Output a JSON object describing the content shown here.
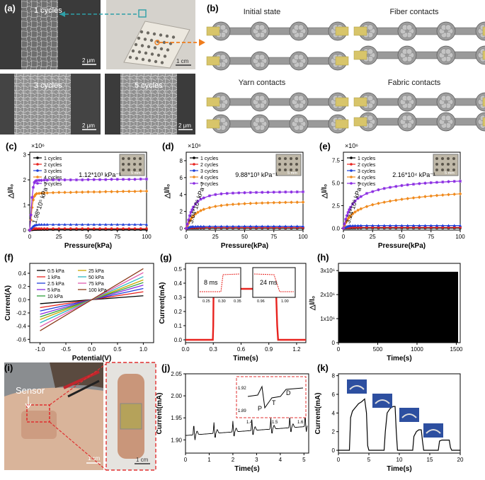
{
  "colors": {
    "black": "#000000",
    "red": "#e8231f",
    "blue": "#1f3fd8",
    "orange": "#f08a1d",
    "purple": "#8a2be2",
    "gray": "#8c8c8c",
    "yarn": "#d8c56a",
    "skin": "#d9b49a",
    "bandage": "#c9967a"
  },
  "panel_labels": {
    "a": "(a)",
    "b": "(b)",
    "c": "(c)",
    "d": "(d)",
    "e": "(e)",
    "f": "(f)",
    "g": "(g)",
    "h": "(h)",
    "i": "(i)",
    "j": "(j)",
    "k": "(k)"
  },
  "panel_a": {
    "sem1": {
      "label": "1 cycles",
      "scale": "2 μm"
    },
    "photo_scale": "1 cm",
    "sem3": {
      "label": "3 cycles",
      "scale": "2 μm"
    },
    "sem5": {
      "label": "5 cycles",
      "scale": "2 μm"
    }
  },
  "panel_b": {
    "states": [
      "Initial state",
      "Fiber contacts",
      "Yarn contacts",
      "Fabric contacts"
    ]
  },
  "legend_cycles": [
    "1 cycles",
    "2 cycles",
    "3 cycles",
    "4 cycles",
    "5 cycles"
  ],
  "multiplier": "×10⁶",
  "ylabel_ratio": "△I/I₀",
  "inset_scale": "5 mm",
  "chart_data": [
    {
      "id": "c",
      "type": "line",
      "xlabel": "Pressure(kPa)",
      "ylabel": "△I/I₀",
      "multiplier": "×10⁶",
      "xlim": [
        0,
        100
      ],
      "ylim": [
        0,
        3.1
      ],
      "xticks": [
        0,
        25,
        50,
        75,
        100
      ],
      "yticks": [
        0,
        1,
        2,
        3
      ],
      "annotations": [
        "1.12*10³ kPa⁻¹",
        "1.98*10⁵ kPa⁻¹"
      ],
      "x": [
        0,
        1,
        2,
        3,
        4,
        5,
        6,
        8,
        10,
        12.5,
        15,
        20,
        25,
        30,
        35,
        40,
        45,
        50,
        55,
        60,
        65,
        70,
        75,
        80,
        85,
        90,
        95,
        100
      ],
      "series": [
        {
          "name": "1 cycles",
          "color": "#000000",
          "values": [
            0,
            0.005,
            0.01,
            0.015,
            0.02,
            0.02,
            0.02,
            0.02,
            0.02,
            0.02,
            0.02,
            0.02,
            0.02,
            0.02,
            0.02,
            0.02,
            0.02,
            0.02,
            0.02,
            0.02,
            0.02,
            0.02,
            0.02,
            0.02,
            0.02,
            0.02,
            0.02,
            0.02
          ]
        },
        {
          "name": "2 cycles",
          "color": "#e8231f",
          "values": [
            0,
            0.02,
            0.04,
            0.05,
            0.06,
            0.06,
            0.06,
            0.06,
            0.06,
            0.06,
            0.06,
            0.06,
            0.06,
            0.06,
            0.06,
            0.06,
            0.06,
            0.06,
            0.06,
            0.06,
            0.06,
            0.06,
            0.06,
            0.06,
            0.06,
            0.06,
            0.06,
            0.06
          ]
        },
        {
          "name": "3 cycles",
          "color": "#1f3fd8",
          "values": [
            0,
            0.05,
            0.1,
            0.15,
            0.18,
            0.2,
            0.21,
            0.22,
            0.22,
            0.22,
            0.22,
            0.22,
            0.22,
            0.22,
            0.22,
            0.22,
            0.22,
            0.22,
            0.22,
            0.22,
            0.22,
            0.22,
            0.22,
            0.22,
            0.22,
            0.22,
            0.22,
            0.22
          ]
        },
        {
          "name": "4 cycles",
          "color": "#f08a1d",
          "values": [
            0,
            0.4,
            0.9,
            1.2,
            1.35,
            1.42,
            1.45,
            1.46,
            1.47,
            1.48,
            1.48,
            1.49,
            1.5,
            1.5,
            1.5,
            1.51,
            1.51,
            1.52,
            1.52,
            1.52,
            1.53,
            1.53,
            1.53,
            1.54,
            1.54,
            1.54,
            1.55,
            1.55
          ]
        },
        {
          "name": "5 cycles",
          "color": "#8a2be2",
          "values": [
            0,
            0.6,
            1.3,
            1.7,
            1.9,
            1.95,
            1.97,
            1.98,
            1.98,
            1.99,
            1.99,
            2.0,
            2.0,
            2.0,
            2.0,
            2.0,
            2.0,
            2.01,
            2.01,
            2.01,
            2.01,
            2.02,
            2.02,
            2.02,
            2.02,
            2.02,
            2.03,
            2.03
          ]
        }
      ]
    },
    {
      "id": "d",
      "type": "line",
      "xlabel": "Pressure(kPa)",
      "ylabel": "△I/I₀",
      "multiplier": "×10⁶",
      "xlim": [
        0,
        100
      ],
      "ylim": [
        -0.2,
        9
      ],
      "xticks": [
        0,
        25,
        50,
        75,
        100
      ],
      "yticks": [
        0,
        2,
        4,
        6,
        8
      ],
      "annotations": [
        "9.88*10³ kPa⁻¹",
        "3.04*10⁵ kPa⁻¹"
      ],
      "x": [
        0,
        1,
        2,
        3,
        4,
        5,
        6,
        8,
        10,
        12.5,
        15,
        20,
        25,
        30,
        35,
        40,
        45,
        50,
        55,
        60,
        65,
        70,
        75,
        80,
        85,
        90,
        95,
        100
      ],
      "series": [
        {
          "name": "1 cycles",
          "color": "#000000",
          "values": [
            0,
            0.01,
            0.02,
            0.03,
            0.03,
            0.03,
            0.03,
            0.03,
            0.03,
            0.03,
            0.03,
            0.03,
            0.03,
            0.03,
            0.03,
            0.03,
            0.03,
            0.03,
            0.03,
            0.03,
            0.03,
            0.03,
            0.03,
            0.03,
            0.03,
            0.03,
            0.03,
            0.03
          ]
        },
        {
          "name": "2 cycles",
          "color": "#e8231f",
          "values": [
            0,
            0.03,
            0.05,
            0.07,
            0.08,
            0.09,
            0.1,
            0.1,
            0.1,
            0.1,
            0.1,
            0.1,
            0.1,
            0.1,
            0.1,
            0.1,
            0.1,
            0.1,
            0.1,
            0.1,
            0.1,
            0.1,
            0.1,
            0.1,
            0.1,
            0.1,
            0.1,
            0.1
          ]
        },
        {
          "name": "3 cycles",
          "color": "#1f3fd8",
          "values": [
            0,
            0.05,
            0.1,
            0.15,
            0.18,
            0.2,
            0.21,
            0.22,
            0.23,
            0.23,
            0.23,
            0.24,
            0.24,
            0.24,
            0.24,
            0.24,
            0.24,
            0.25,
            0.25,
            0.25,
            0.25,
            0.25,
            0.25,
            0.25,
            0.25,
            0.25,
            0.25,
            0.25
          ]
        },
        {
          "name": "4 cycles",
          "color": "#f08a1d",
          "values": [
            0,
            0.3,
            0.6,
            0.9,
            1.1,
            1.3,
            1.45,
            1.7,
            1.9,
            2.1,
            2.25,
            2.45,
            2.6,
            2.7,
            2.78,
            2.84,
            2.88,
            2.92,
            2.95,
            2.98,
            3.0,
            3.02,
            3.04,
            3.05,
            3.07,
            3.08,
            3.09,
            3.1
          ]
        },
        {
          "name": "5 cycles",
          "color": "#8a2be2",
          "values": [
            0,
            0.5,
            1.0,
            1.5,
            1.9,
            2.2,
            2.5,
            2.9,
            3.2,
            3.45,
            3.6,
            3.85,
            4.0,
            4.08,
            4.13,
            4.17,
            4.2,
            4.22,
            4.24,
            4.25,
            4.26,
            4.27,
            4.28,
            4.29,
            4.3,
            4.3,
            4.31,
            4.32
          ]
        }
      ]
    },
    {
      "id": "e",
      "type": "line",
      "xlabel": "Pressure(kPa)",
      "ylabel": "△I/I₀",
      "multiplier": "×10⁶",
      "xlim": [
        0,
        100
      ],
      "ylim": [
        -0.2,
        8.4
      ],
      "xticks": [
        0,
        25,
        50,
        75,
        100
      ],
      "yticks": [
        0,
        2.5,
        5,
        7.5
      ],
      "yticklabels": [
        "0.0",
        "2.5",
        "5.0",
        "7.5"
      ],
      "annotations": [
        "2.16*10⁴ kPa⁻¹",
        "3.24*10⁵ kPa⁻¹"
      ],
      "x": [
        0,
        1,
        2,
        3,
        4,
        5,
        6,
        8,
        10,
        12.5,
        15,
        20,
        25,
        30,
        35,
        40,
        45,
        50,
        55,
        60,
        65,
        70,
        75,
        80,
        85,
        90,
        95,
        100
      ],
      "series": [
        {
          "name": "1 cycles",
          "color": "#000000",
          "values": [
            0,
            0.01,
            0.02,
            0.03,
            0.03,
            0.03,
            0.03,
            0.03,
            0.03,
            0.03,
            0.03,
            0.03,
            0.03,
            0.03,
            0.03,
            0.03,
            0.03,
            0.03,
            0.03,
            0.03,
            0.03,
            0.03,
            0.03,
            0.03,
            0.03,
            0.03,
            0.03,
            0.03
          ]
        },
        {
          "name": "2 cycles",
          "color": "#e8231f",
          "values": [
            0,
            0.03,
            0.06,
            0.08,
            0.09,
            0.1,
            0.1,
            0.1,
            0.1,
            0.1,
            0.1,
            0.1,
            0.1,
            0.1,
            0.1,
            0.1,
            0.1,
            0.1,
            0.1,
            0.1,
            0.1,
            0.1,
            0.1,
            0.1,
            0.1,
            0.1,
            0.1,
            0.1
          ]
        },
        {
          "name": "3 cycles",
          "color": "#1f3fd8",
          "values": [
            0,
            0.06,
            0.12,
            0.18,
            0.22,
            0.25,
            0.27,
            0.28,
            0.29,
            0.29,
            0.3,
            0.3,
            0.3,
            0.3,
            0.3,
            0.3,
            0.3,
            0.3,
            0.3,
            0.3,
            0.3,
            0.3,
            0.3,
            0.3,
            0.3,
            0.3,
            0.3,
            0.3
          ]
        },
        {
          "name": "4 cycles",
          "color": "#f08a1d",
          "values": [
            0,
            0.3,
            0.6,
            0.85,
            1.05,
            1.2,
            1.35,
            1.6,
            1.8,
            2.0,
            2.15,
            2.4,
            2.6,
            2.75,
            2.88,
            3.0,
            3.1,
            3.2,
            3.28,
            3.36,
            3.43,
            3.5,
            3.56,
            3.62,
            3.67,
            3.72,
            3.76,
            3.8
          ]
        },
        {
          "name": "5 cycles",
          "color": "#8a2be2",
          "values": [
            0,
            0.5,
            1.0,
            1.4,
            1.75,
            2.05,
            2.3,
            2.7,
            3.0,
            3.3,
            3.5,
            3.85,
            4.05,
            4.25,
            4.4,
            4.52,
            4.62,
            4.72,
            4.8,
            4.87,
            4.93,
            4.98,
            5.03,
            5.07,
            5.11,
            5.15,
            5.18,
            5.2
          ]
        }
      ]
    },
    {
      "id": "f",
      "type": "line",
      "xlabel": "Potential(V)",
      "ylabel": "Current(A)",
      "xlim": [
        -1.2,
        1.2
      ],
      "ylim": [
        -0.65,
        0.55
      ],
      "xticks": [
        -1.0,
        -0.5,
        0.0,
        0.5,
        1.0
      ],
      "yticks": [
        -0.6,
        -0.4,
        -0.2,
        0.0,
        0.2,
        0.4
      ],
      "xticklabels": [
        "-1.0",
        "-0.5",
        "0.0",
        "0.5",
        "1.0"
      ],
      "yticklabels": [
        "-0.6",
        "-0.4",
        "-0.2",
        "0.0",
        "0.2",
        "0.4"
      ],
      "series": [
        {
          "name": "0.5 kPa",
          "color": "#000000",
          "slope": 0.06
        },
        {
          "name": "1 kPa",
          "color": "#e8231f",
          "slope": 0.12
        },
        {
          "name": "2.5 kPa",
          "color": "#1f3fd8",
          "slope": 0.17
        },
        {
          "name": "5 kPa",
          "color": "#8a2be2",
          "slope": 0.22
        },
        {
          "name": "10 kPa",
          "color": "#2e9e3a",
          "slope": 0.26
        },
        {
          "name": "25 kPa",
          "color": "#c8a800",
          "slope": 0.3
        },
        {
          "name": "50 kPa",
          "color": "#2db7c4",
          "slope": 0.35
        },
        {
          "name": "75 kPa",
          "color": "#e05ab0",
          "slope": 0.41
        },
        {
          "name": "100 kPa",
          "color": "#8b3a1a",
          "slope": 0.47
        }
      ]
    },
    {
      "id": "g",
      "type": "line",
      "xlabel": "Time(s)",
      "ylabel": "Current(mA)",
      "xlim": [
        0,
        1.3
      ],
      "ylim": [
        -0.02,
        0.54
      ],
      "xticks": [
        0,
        0.3,
        0.6,
        0.9,
        1.2
      ],
      "yticks": [
        0,
        0.1,
        0.2,
        0.3,
        0.4,
        0.5
      ],
      "xticklabels": [
        "0.0",
        "0.3",
        "0.6",
        "0.9",
        "1.2"
      ],
      "yticklabels": [
        "0.0",
        "0.1",
        "0.2",
        "0.3",
        "0.4",
        "0.5"
      ],
      "x": [
        0,
        0.295,
        0.3,
        0.303,
        0.31,
        0.35,
        0.4,
        0.5,
        0.6,
        0.7,
        0.8,
        0.9,
        0.96,
        0.97,
        0.98,
        0.99,
        1.0,
        1.1,
        1.2,
        1.3
      ],
      "values": [
        0,
        0,
        0.1,
        0.33,
        0.355,
        0.36,
        0.36,
        0.36,
        0.36,
        0.36,
        0.36,
        0.36,
        0.36,
        0.35,
        0.3,
        0.1,
        0,
        0,
        0,
        0
      ],
      "insets": [
        {
          "label": "8 ms",
          "xticks": [
            "0.25",
            "0.30",
            "0.35"
          ]
        },
        {
          "label": "24 ms",
          "xticks": [
            "0.96",
            "1.00"
          ]
        }
      ]
    },
    {
      "id": "h",
      "type": "area",
      "xlabel": "Time(s)",
      "ylabel": "△I/I₀",
      "xlim": [
        0,
        1550
      ],
      "ylim": [
        0,
        3.3
      ],
      "xticks": [
        0,
        500,
        1000,
        1500
      ],
      "yticks": [
        0,
        1,
        2,
        3
      ],
      "yticklabels": [
        "0",
        "1x10⁶",
        "2x10⁶",
        "3x10⁶"
      ],
      "level": 2.95
    },
    {
      "id": "j",
      "type": "line",
      "xlabel": "Time(s)",
      "ylabel": "Current(mA)",
      "xlim": [
        0,
        5.2
      ],
      "ylim": [
        1.87,
        2.05
      ],
      "xticks": [
        0,
        1,
        2,
        3,
        4,
        5
      ],
      "yticks": [
        1.9,
        1.95,
        2.0,
        2.05
      ],
      "yticklabels": [
        "1.90",
        "1.95",
        "2.00",
        "2.05"
      ],
      "beats": [
        0.35,
        1.2,
        2.0,
        2.8,
        3.6,
        4.4,
        5.05
      ],
      "inset": {
        "yticks": [
          "1.92",
          "1.89"
        ],
        "xticks": [
          "1.4",
          "1.5",
          "1.6"
        ],
        "peaks": [
          "P",
          "T",
          "D"
        ]
      }
    },
    {
      "id": "k",
      "type": "line",
      "xlabel": "Time(s)",
      "ylabel": "Current(mA)",
      "xlim": [
        0,
        20
      ],
      "ylim": [
        -0.3,
        8.2
      ],
      "xticks": [
        0,
        5,
        10,
        15,
        20
      ],
      "yticks": [
        0,
        2,
        4,
        6,
        8
      ],
      "x": [
        0,
        1.8,
        2.0,
        2.3,
        2.8,
        3.3,
        3.8,
        4.3,
        4.6,
        4.8,
        5.0,
        7.5,
        7.7,
        8.0,
        8.5,
        9.0,
        9.3,
        9.5,
        9.7,
        12.2,
        12.4,
        12.8,
        13.2,
        13.6,
        13.8,
        14.0,
        16.4,
        16.6,
        17.0,
        17.6,
        18.2,
        18.4,
        18.6,
        20
      ],
      "values": [
        0,
        0,
        3.5,
        4.2,
        4.6,
        5.0,
        5.2,
        5.5,
        4.0,
        0.5,
        0,
        0,
        2.0,
        4.0,
        4.5,
        4.7,
        4.7,
        2.0,
        0,
        0,
        1.5,
        2.0,
        2.2,
        2.2,
        1.0,
        0,
        0,
        1.0,
        1.1,
        1.1,
        1.1,
        0.3,
        0,
        0
      ]
    }
  ]
}
